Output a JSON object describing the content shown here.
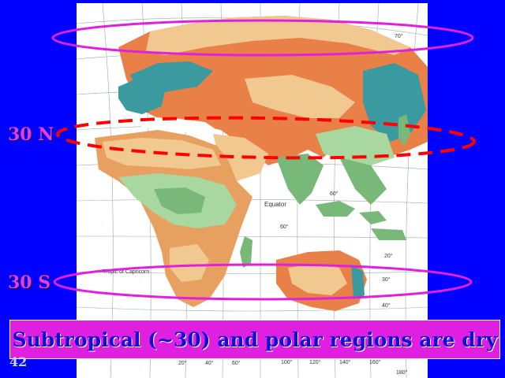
{
  "slide": {
    "number": "42",
    "caption": "Subtropical (~30) and polar regions are dry",
    "label_north": "30 N",
    "label_south": "30 S"
  },
  "map": {
    "equator_label": "Equator",
    "tropic_label": "Tropic of Capricorn",
    "latitude_labels": [
      "70°",
      "60°",
      "20°",
      "30°",
      "40°",
      "60°"
    ],
    "longitude_labels": [
      "20°",
      "40°",
      "60°",
      "100°",
      "120°",
      "140°",
      "160°",
      "180°"
    ]
  },
  "colors": {
    "background": "#0000ff",
    "ellipse": "#e020e0",
    "dashed_ellipse": "#ff0000",
    "caption_box": "#e020e0",
    "caption_text": "#1010d0",
    "map_bg": "#ffffff",
    "desert": "#e8a060",
    "semi_arid": "#f0c890",
    "forest_green": "#78b878",
    "tundra_teal": "#3a9aa0",
    "cold_orange": "#e88048",
    "light_green": "#a8d8a0"
  }
}
